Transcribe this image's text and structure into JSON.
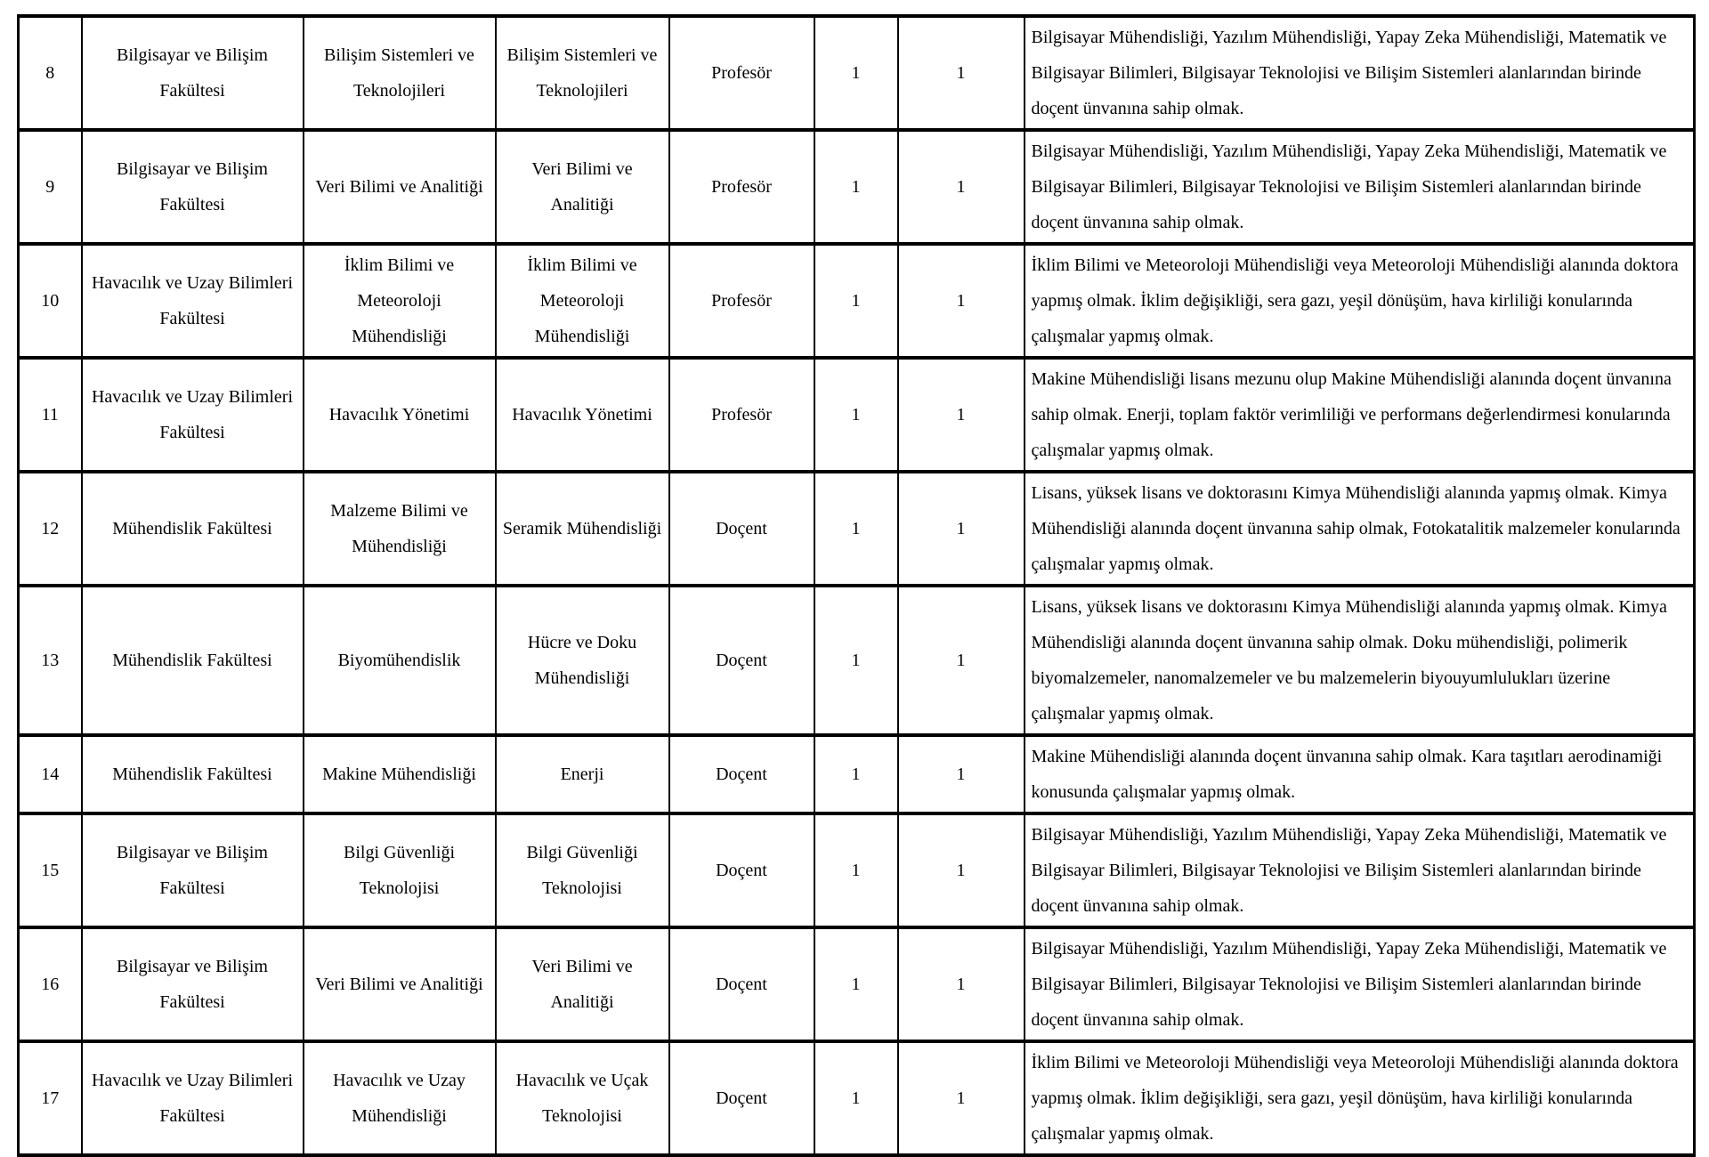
{
  "table": {
    "rows": [
      {
        "no": "8",
        "faculty": "Bilgisayar ve Bilişim Fakültesi",
        "department": "Bilişim Sistemleri ve Teknolojileri",
        "field": "Bilişim Sistemleri ve Teknolojileri",
        "title": "Profesör",
        "count1": "1",
        "count2": "1",
        "description": "Bilgisayar Mühendisliği, Yazılım Mühendisliği, Yapay Zeka Mühendisliği, Matematik ve Bilgisayar Bilimleri, Bilgisayar Teknolojisi ve Bilişim Sistemleri alanlarından birinde doçent ünvanına sahip olmak."
      },
      {
        "no": "9",
        "faculty": "Bilgisayar ve Bilişim Fakültesi",
        "department": "Veri Bilimi ve Analitiği",
        "field": "Veri Bilimi ve Analitiği",
        "title": "Profesör",
        "count1": "1",
        "count2": "1",
        "description": "Bilgisayar Mühendisliği, Yazılım Mühendisliği, Yapay Zeka Mühendisliği, Matematik ve Bilgisayar Bilimleri, Bilgisayar Teknolojisi ve Bilişim Sistemleri alanlarından birinde doçent ünvanına sahip olmak."
      },
      {
        "no": "10",
        "faculty": "Havacılık ve Uzay Bilimleri Fakültesi",
        "department": "İklim Bilimi ve Meteoroloji Mühendisliği",
        "field": "İklim Bilimi ve Meteoroloji Mühendisliği",
        "title": "Profesör",
        "count1": "1",
        "count2": "1",
        "description": "İklim Bilimi ve Meteoroloji Mühendisliği veya Meteoroloji Mühendisliği alanında doktora yapmış olmak. İklim değişikliği, sera gazı, yeşil dönüşüm, hava kirliliği konularında çalışmalar yapmış olmak."
      },
      {
        "no": "11",
        "faculty": "Havacılık ve Uzay Bilimleri Fakültesi",
        "department": "Havacılık Yönetimi",
        "field": "Havacılık Yönetimi",
        "title": "Profesör",
        "count1": "1",
        "count2": "1",
        "description": "Makine Mühendisliği lisans mezunu olup Makine Mühendisliği alanında doçent ünvanına sahip olmak. Enerji, toplam faktör verimliliği ve performans değerlendirmesi konularında çalışmalar yapmış olmak."
      },
      {
        "no": "12",
        "faculty": "Mühendislik Fakültesi",
        "department": "Malzeme Bilimi ve Mühendisliği",
        "field": "Seramik Mühendisliği",
        "title": "Doçent",
        "count1": "1",
        "count2": "1",
        "description": "Lisans, yüksek lisans ve doktorasını Kimya Mühendisliği alanında yapmış olmak. Kimya Mühendisliği alanında doçent ünvanına sahip olmak, Fotokatalitik malzemeler konularında çalışmalar yapmış olmak."
      },
      {
        "no": "13",
        "faculty": "Mühendislik Fakültesi",
        "department": "Biyomühendislik",
        "field": "Hücre ve Doku Mühendisliği",
        "title": "Doçent",
        "count1": "1",
        "count2": "1",
        "description": "Lisans, yüksek lisans ve doktorasını Kimya Mühendisliği alanında yapmış olmak. Kimya Mühendisliği alanında doçent ünvanına sahip olmak. Doku mühendisliği, polimerik biyomalzemeler, nanomalzemeler ve bu malzemelerin biyouyumlulukları üzerine çalışmalar yapmış olmak."
      },
      {
        "no": "14",
        "faculty": "Mühendislik Fakültesi",
        "department": "Makine Mühendisliği",
        "field": "Enerji",
        "title": "Doçent",
        "count1": "1",
        "count2": "1",
        "description": "Makine Mühendisliği alanında doçent ünvanına sahip olmak. Kara taşıtları aerodinamiği konusunda çalışmalar yapmış olmak."
      },
      {
        "no": "15",
        "faculty": "Bilgisayar ve Bilişim Fakültesi",
        "department": "Bilgi Güvenliği Teknolojisi",
        "field": "Bilgi Güvenliği Teknolojisi",
        "title": "Doçent",
        "count1": "1",
        "count2": "1",
        "description": "Bilgisayar Mühendisliği, Yazılım Mühendisliği, Yapay Zeka Mühendisliği, Matematik ve Bilgisayar Bilimleri, Bilgisayar Teknolojisi ve Bilişim Sistemleri alanlarından birinde doçent ünvanına sahip olmak."
      },
      {
        "no": "16",
        "faculty": "Bilgisayar ve Bilişim Fakültesi",
        "department": "Veri Bilimi ve Analitiği",
        "field": "Veri Bilimi ve Analitiği",
        "title": "Doçent",
        "count1": "1",
        "count2": "1",
        "description": "Bilgisayar Mühendisliği, Yazılım Mühendisliği, Yapay Zeka Mühendisliği, Matematik ve Bilgisayar Bilimleri, Bilgisayar Teknolojisi ve Bilişim Sistemleri alanlarından birinde doçent ünvanına sahip olmak."
      },
      {
        "no": "17",
        "faculty": "Havacılık ve Uzay Bilimleri Fakültesi",
        "department": "Havacılık ve Uzay Mühendisliği",
        "field": "Havacılık ve Uçak Teknolojisi",
        "title": "Doçent",
        "count1": "1",
        "count2": "1",
        "description": "İklim Bilimi ve Meteoroloji Mühendisliği veya Meteoroloji Mühendisliği alanında doktora yapmış olmak. İklim değişikliği, sera gazı, yeşil dönüşüm, hava kirliliği konularında çalışmalar yapmış olmak."
      }
    ],
    "colors": {
      "text": "#000000",
      "border": "#000000",
      "background": "#ffffff"
    }
  }
}
